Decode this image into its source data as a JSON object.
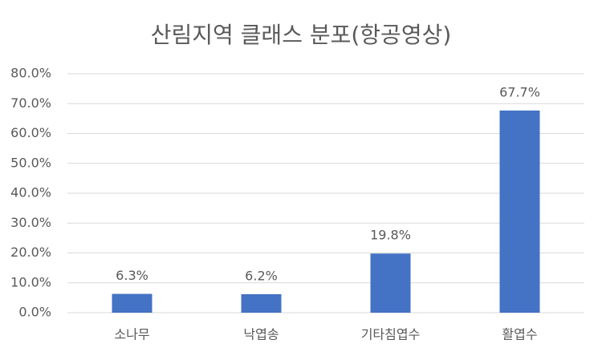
{
  "chart_data": {
    "type": "bar",
    "title": "산림지역 클래스 분포(항공영상)",
    "categories": [
      "소나무",
      "낙엽송",
      "기타침엽수",
      "활엽수"
    ],
    "values": [
      6.3,
      6.2,
      19.8,
      67.7
    ],
    "value_labels": [
      "6.3%",
      "6.2%",
      "19.8%",
      "67.7%"
    ],
    "color": "#4472c4",
    "ylim": [
      0,
      80
    ],
    "yticks": [
      {
        "value": 0,
        "label": "0.0%"
      },
      {
        "value": 10,
        "label": "10.0%"
      },
      {
        "value": 20,
        "label": "20.0%"
      },
      {
        "value": 30,
        "label": "30.0%"
      },
      {
        "value": 40,
        "label": "40.0%"
      },
      {
        "value": 50,
        "label": "50.0%"
      },
      {
        "value": 60,
        "label": "60.0%"
      },
      {
        "value": 70,
        "label": "70.0%"
      },
      {
        "value": 80,
        "label": "80.0%"
      }
    ],
    "grid": true
  }
}
